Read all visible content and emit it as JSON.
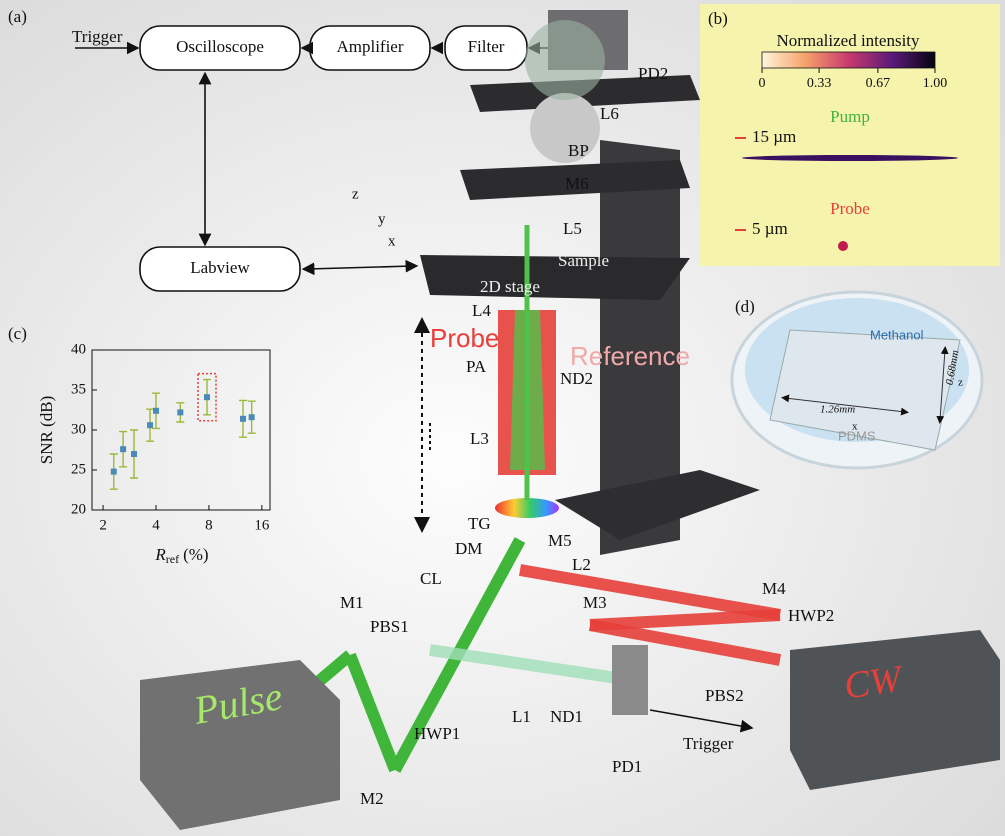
{
  "panel_a": {
    "label": "(a)",
    "trigger_in": "Trigger",
    "oscilloscope": "Oscilloscope",
    "amplifier": "Amplifier",
    "filter": "Filter",
    "labview": "Labview"
  },
  "setup": {
    "pd2": "PD2",
    "l6": "L6",
    "bp": "BP",
    "m6": "M6",
    "l5": "L5",
    "sample": "Sample",
    "stage": "2D stage",
    "axis_z": "z",
    "axis_y": "y",
    "axis_x": "x",
    "l4": "L4",
    "probe": "Probe",
    "reference": "Reference",
    "pa": "PA",
    "nd2": "ND2",
    "l3": "L3",
    "tg": "TG",
    "dm": "DM",
    "m5": "M5",
    "l2": "L2",
    "cl": "CL",
    "m1": "M1",
    "pbs1": "PBS1",
    "m3": "M3",
    "m4": "M4",
    "hwp2": "HWP2",
    "pbs2": "PBS2",
    "cw": "CW",
    "pulse": "Pulse",
    "hwp1": "HWP1",
    "l1": "L1",
    "nd1": "ND1",
    "pd1": "PD1",
    "trigger_out": "Trigger",
    "m2": "M2"
  },
  "panel_b": {
    "label": "(b)",
    "colorbar": {
      "title": "Normalized intensity",
      "lim": [
        0,
        1
      ],
      "ticks": [
        0,
        0.33,
        0.67,
        {
          "value": 1,
          "label": "1.00"
        }
      ]
    },
    "pump": "Pump",
    "pump_scale": "15 µm",
    "probe": "Probe",
    "probe_scale": "5 µm"
  },
  "panel_d": {
    "label": "(d)",
    "liquid": "Methanol",
    "length": "1.26mm",
    "height": "0.68mm",
    "material": "PDMS",
    "axis_z": "z",
    "axis_x": "x"
  },
  "chart_data": {
    "type": "errorbar",
    "panel_label": "(c)",
    "y_label": "SNR (dB)",
    "x_label": {
      "symbol": "R",
      "subscript": "ref",
      "unit": "(%)"
    },
    "x_scale": "log",
    "xlim": [
      1.73,
      17.8
    ],
    "xticks": [
      2,
      4,
      8,
      16
    ],
    "ylim": [
      20,
      40
    ],
    "yticks": [
      20,
      25,
      30,
      35,
      40
    ],
    "series": [
      {
        "color": "#4a8ab8",
        "error_color": "#9ab83a",
        "x": [
          2.3,
          2.6,
          3.0,
          3.7,
          4.0,
          5.5,
          7.8,
          12.5,
          14
        ],
        "values": [
          24.8,
          27.6,
          27.0,
          30.6,
          32.4,
          32.2,
          34.1,
          31.4,
          31.6
        ],
        "errors": [
          2.2,
          2.2,
          3.0,
          2.0,
          2.2,
          1.2,
          2.2,
          2.3,
          2.0
        ]
      }
    ],
    "highlight_index": 6,
    "highlight_color": "#e7403a"
  }
}
